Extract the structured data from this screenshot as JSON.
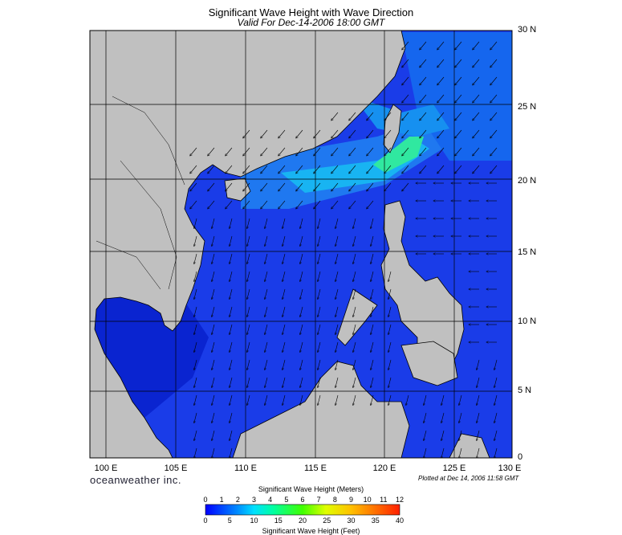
{
  "title": "Significant Wave Height with Wave Direction",
  "subtitle": "Valid For Dec-14-2006 18:00 GMT",
  "lat_labels": [
    "30 N",
    "25 N",
    "20 N",
    "15 N",
    "10 N",
    "5 N",
    "0"
  ],
  "lon_labels": [
    "100 E",
    "105 E",
    "110 E",
    "115 E",
    "120 E",
    "125 E",
    "130 E"
  ],
  "brand": "oceanweather inc.",
  "plotted": "Plotted at Dec 14, 2006 11:58 GMT",
  "colorbar": {
    "meters_title": "Significant Wave Height (Meters)",
    "feet_title": "Significant Wave Height (Feet)",
    "meters_ticks": [
      "0",
      "1",
      "2",
      "3",
      "4",
      "5",
      "6",
      "7",
      "8",
      "9",
      "10",
      "11",
      "12"
    ],
    "feet_ticks": [
      "0",
      "5",
      "10",
      "15",
      "20",
      "25",
      "30",
      "35",
      "40"
    ],
    "colors": [
      "#0000ff",
      "#0040ff",
      "#0090ff",
      "#00e0ff",
      "#00ffa0",
      "#40ff00",
      "#a0ff00",
      "#e0ff00",
      "#ffe000",
      "#ffa000",
      "#ff6000",
      "#ff2000"
    ]
  },
  "colors": {
    "land": "#c0c0c0",
    "water_low": "#1040e0",
    "water_high": "#00ff80"
  }
}
